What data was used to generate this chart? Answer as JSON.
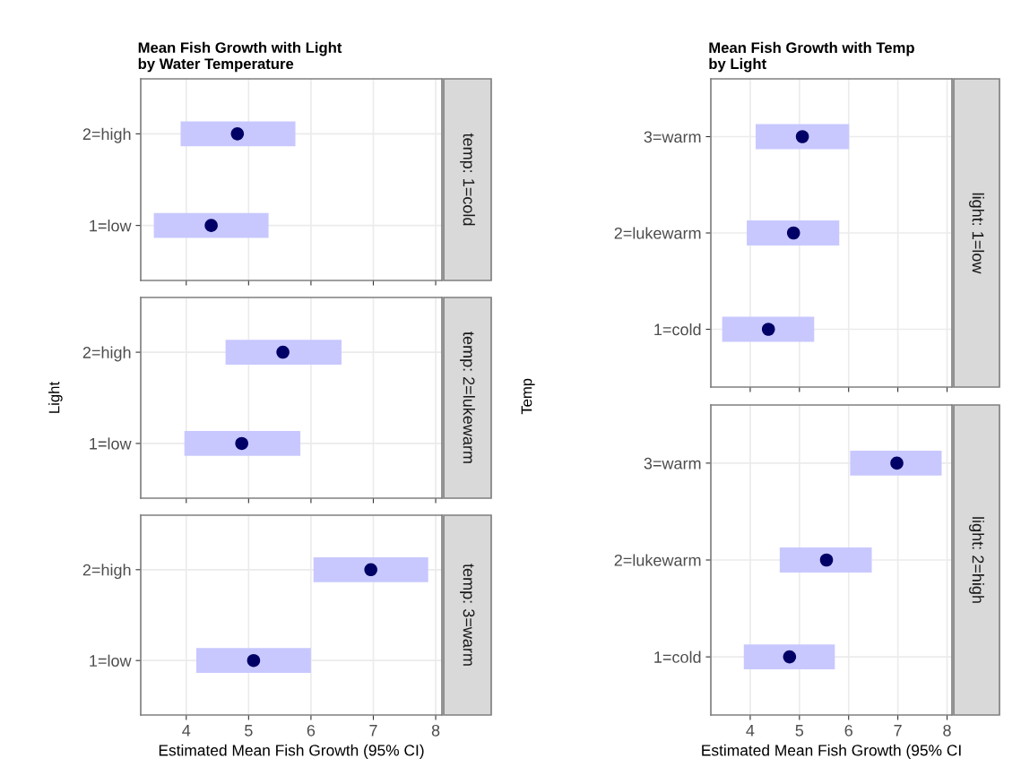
{
  "chart_data": [
    {
      "type": "scatter",
      "orientation": "horizontal",
      "title": "Mean Fish Growth with Light\nby Water Temperature",
      "categories": [
        "2=high",
        "1=low"
      ],
      "values": [
        4.82,
        4.4
      ],
      "errors": [
        [
          3.91,
          5.75
        ],
        [
          3.48,
          5.32
        ]
      ],
      "color": "#000066",
      "marker": "circle",
      "xlim": [
        3.27,
        8.1
      ],
      "xticks": [
        4,
        5,
        6,
        7,
        8
      ],
      "grid": true,
      "tick_labels": "y",
      "annotations": [
        "temp: 1=cold"
      ]
    },
    {
      "type": "scatter",
      "orientation": "horizontal",
      "ylabel": "Light",
      "categories": [
        "2=high",
        "1=low"
      ],
      "values": [
        5.55,
        4.89
      ],
      "errors": [
        [
          4.63,
          6.49
        ],
        [
          3.97,
          5.83
        ]
      ],
      "color": "#000066",
      "marker": "circle",
      "xlim": [
        3.27,
        8.1
      ],
      "xticks": [
        4,
        5,
        6,
        7,
        8
      ],
      "grid": true,
      "tick_labels": "y",
      "annotations": [
        "temp: 2=lukewarm"
      ]
    },
    {
      "type": "scatter",
      "orientation": "horizontal",
      "xlabel": "Estimated Mean Fish Growth (95% CI)",
      "categories": [
        "2=high",
        "1=low"
      ],
      "values": [
        6.96,
        5.08
      ],
      "errors": [
        [
          6.04,
          7.88
        ],
        [
          4.16,
          6.0
        ]
      ],
      "color": "#000066",
      "marker": "circle",
      "xlim": [
        3.27,
        8.1
      ],
      "xticks": [
        4,
        5,
        6,
        7,
        8
      ],
      "grid": true,
      "annotations": [
        "temp: 3=warm"
      ]
    },
    {
      "type": "scatter",
      "orientation": "horizontal",
      "title": "Mean Fish Growth with Temp\nby Light",
      "ylabel": "Temp",
      "categories": [
        "3=warm",
        "2=lukewarm",
        "1=cold"
      ],
      "values": [
        5.06,
        4.88,
        4.37
      ],
      "errors": [
        [
          4.11,
          6.01
        ],
        [
          3.93,
          5.81
        ],
        [
          3.43,
          5.3
        ]
      ],
      "color": "#000066",
      "marker": "circle",
      "xlim": [
        3.2,
        8.1
      ],
      "xticks": [
        4,
        5,
        6,
        7,
        8
      ],
      "grid": true,
      "tick_labels": "y",
      "annotations": [
        "light: 1=low"
      ]
    },
    {
      "type": "scatter",
      "orientation": "horizontal",
      "xlabel": "Estimated Mean Fish Growth (95% CI",
      "categories": [
        "3=warm",
        "2=lukewarm",
        "1=cold"
      ],
      "values": [
        6.98,
        5.55,
        4.8
      ],
      "errors": [
        [
          6.03,
          7.89
        ],
        [
          4.6,
          6.47
        ],
        [
          3.87,
          5.72
        ]
      ],
      "color": "#000066",
      "marker": "circle",
      "xlim": [
        3.2,
        8.1
      ],
      "xticks": [
        4,
        5,
        6,
        7,
        8
      ],
      "grid": true,
      "annotations": [
        "light: 2=high"
      ]
    }
  ]
}
